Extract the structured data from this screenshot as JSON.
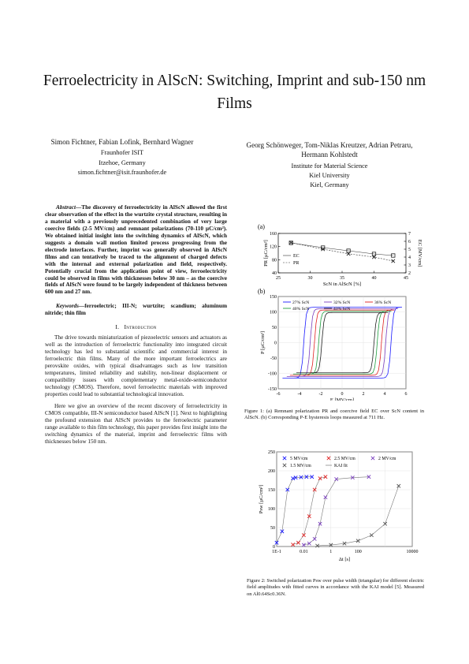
{
  "title": "Ferroelectricity in AlScN: Switching, Imprint and sub-150 nm Films",
  "authors_left": {
    "names": "Simon Fichtner, Fabian Lofink, Bernhard Wagner",
    "affiliation": "Fraunhofer ISIT",
    "city": "Itzehoe, Germany",
    "email": "simon.fichtner@isit.fraunhofer.de"
  },
  "authors_right": {
    "names": "Georg Schönweger, Tom-Niklas Kreutzer, Adrian Petraru, Hermann Kohlstedt",
    "affiliation": "Institute for Material Science",
    "university": "Kiel University",
    "city": "Kiel, Germany"
  },
  "abstract": {
    "label": "Abstract",
    "text": "—The discovery of ferroelectricity in AlScN allowed the first clear observation of the effect in the wurtzite crystal structure, resulting in a material with a previously unprecedented combination of very large coercive fields (2-5 MV/cm) and remnant polarizations (70-110 µC/cm²). We obtained initial insight into the switching dynamics of AlScN, which suggests a domain wall motion limited process progressing from the electrode interfaces. Further, imprint was generally observed in AlScN films and can tentatively be traced to the alignment of charged defects with the internal and external polarization and field, respectively. Potentially crucial from the application point of view, ferroelectricity could be observed in films with thicknesses below 30 nm – as the coercive fields of AlScN were found to be largely independent of thickness between 600 nm and 27 nm."
  },
  "keywords": {
    "label": "Keywords—",
    "text": "ferroelectric; III-N; wurtzite; scandium; aluminum nitride; thin film"
  },
  "section1": {
    "number": "I.",
    "heading": "Introduction",
    "paragraphs": [
      "The drive towards miniaturization of piezoelectric sensors and actuators as well as the introduction of ferroelectric functionality into integrated circuit technology has led to substantial scientific and commercial interest in ferroelectric thin films. Many of the more important ferroelectrics are perovskite oxides, with typical disadvantages such as low transition temperatures, limited reliability and stability, non-linear displacement or compatibility issues with complementary metal-oxide-semiconductor technology (CMOS). Therefore, novel ferroelectric materials with improved properties could lead to substantial technological innovation.",
      "Here we give an overview of the recent discovery of ferroelectricity in CMOS compatible, III-N semiconductor based AlScN [1]. Next to highlighting the profound extension that AlScN provides to the ferroelectric parameter range available to thin film technology, this paper provides first insight into the switching dynamics of the material, imprint and ferroelectric films with thicknesses below 150 nm."
    ]
  },
  "figure1": {
    "caption": "Figure 1: (a) Remnant polarization PR and coercive field EC over ScN content in AlScN. (b) Corresponding P-E hysteresis loops measured at 711 Hz.",
    "panel_a_label": "(a)",
    "panel_b_label": "(b)",
    "legend_a": [
      "EC",
      "PR"
    ],
    "legend_b": [
      "27% ScN",
      "32% ScN",
      "36% ScN",
      "40% ScN",
      "43% ScN"
    ],
    "colors": [
      "#1a1aff",
      "#7a3fbf",
      "#e02020",
      "#1e9e3e",
      "#222222"
    ]
  },
  "figure2": {
    "caption": "Figure 2: Switched polarization Psw over pulse width (triangular) for different electric field amplitudes with fitted curves in accordance with the KAI model [5]. Measured on Al0.64Sc0.36N.",
    "legend": [
      "5 MV/cm",
      "2.5 MV/cm",
      "2 MV/cm",
      "1.5 MV/cm",
      "KAI fit"
    ]
  },
  "chart_data": [
    {
      "type": "scatter",
      "title": "",
      "xlabel": "ScN in AlScN [%]",
      "ylabel_left": "PR [µC/cm²]",
      "ylabel_right": "EC [MV/cm]",
      "xlim": [
        25,
        45
      ],
      "ylim_left": [
        40,
        160
      ],
      "ylim_right": [
        2,
        7
      ],
      "x_ticks": [
        "25",
        "30",
        "35",
        "40",
        "45"
      ],
      "y_ticks_left": [
        "40",
        "80",
        "120",
        "160"
      ],
      "y_ticks_right": [
        "2",
        "3",
        "4",
        "5",
        "6",
        "7"
      ],
      "series": [
        {
          "name": "EC",
          "axis": "right",
          "x": [
            27,
            32,
            36,
            40,
            43
          ],
          "values": [
            5.8,
            5.2,
            4.8,
            4.4,
            4.2
          ]
        },
        {
          "name": "PR",
          "axis": "left",
          "x": [
            27,
            32,
            36,
            40,
            43
          ],
          "values": [
            132,
            112,
            98,
            88,
            76
          ]
        }
      ]
    },
    {
      "type": "line",
      "title": "",
      "xlabel": "E [MV/cm]",
      "ylabel": "P [µC/cm²]",
      "xlim": [
        -6,
        6
      ],
      "ylim": [
        -150,
        150
      ],
      "x_ticks": [
        "-6",
        "-4",
        "-2",
        "0",
        "2",
        "4",
        "6"
      ],
      "y_ticks": [
        "-150",
        "-100",
        "-50",
        "0",
        "50",
        "100",
        "150"
      ],
      "grid": true,
      "legend_position": "top",
      "series": [
        {
          "name": "27% ScN",
          "Ec_neg": -3.6,
          "Ec_pos": 4.6,
          "Pmax": 115,
          "Emax": 5.6
        },
        {
          "name": "32% ScN",
          "Ec_neg": -3.0,
          "Ec_pos": 4.1,
          "Pmax": 110,
          "Emax": 5.2
        },
        {
          "name": "36% ScN",
          "Ec_neg": -2.6,
          "Ec_pos": 3.7,
          "Pmax": 106,
          "Emax": 4.9
        },
        {
          "name": "40% ScN",
          "Ec_neg": -2.2,
          "Ec_pos": 3.3,
          "Pmax": 102,
          "Emax": 4.6
        },
        {
          "name": "43% ScN",
          "Ec_neg": -1.9,
          "Ec_pos": 3.0,
          "Pmax": 98,
          "Emax": 4.3
        }
      ]
    },
    {
      "type": "scatter",
      "title": "",
      "xlabel": "Δt [s]",
      "ylabel": "Psw [µC/cm²]",
      "xlim_log10": [
        -1,
        4
      ],
      "ylim": [
        0,
        250
      ],
      "x_ticks": [
        "1E-1",
        "0.01",
        "1",
        "100",
        "10000"
      ],
      "y_ticks": [
        "0",
        "50",
        "100",
        "150",
        "200",
        "250"
      ],
      "grid": true,
      "legend_position": "top",
      "series": [
        {
          "name": "5 MV/cm",
          "color": "#1a1aff",
          "x": [
            -1.0,
            -0.8,
            -0.6,
            -0.4,
            -0.3,
            -0.1,
            0.1,
            0.3
          ],
          "values": [
            10,
            40,
            150,
            180,
            182,
            183,
            184,
            184
          ]
        },
        {
          "name": "2.5 MV/cm",
          "color": "#e02020",
          "x": [
            -0.4,
            -0.2,
            0.0,
            0.2,
            0.4,
            0.6,
            0.8
          ],
          "values": [
            5,
            10,
            30,
            80,
            150,
            180,
            184
          ]
        },
        {
          "name": "2 MV/cm",
          "color": "#7a3fbf",
          "x": [
            0.0,
            0.2,
            0.4,
            0.6,
            0.8,
            1.2,
            1.8,
            2.4
          ],
          "values": [
            4,
            8,
            20,
            60,
            130,
            178,
            182,
            184
          ]
        },
        {
          "name": "1.5 MV/cm",
          "color": "#555555",
          "x": [
            0.5,
            1.0,
            1.5,
            2.0,
            2.5,
            3.0,
            3.5
          ],
          "values": [
            2,
            4,
            8,
            15,
            30,
            60,
            160
          ]
        }
      ]
    }
  ]
}
